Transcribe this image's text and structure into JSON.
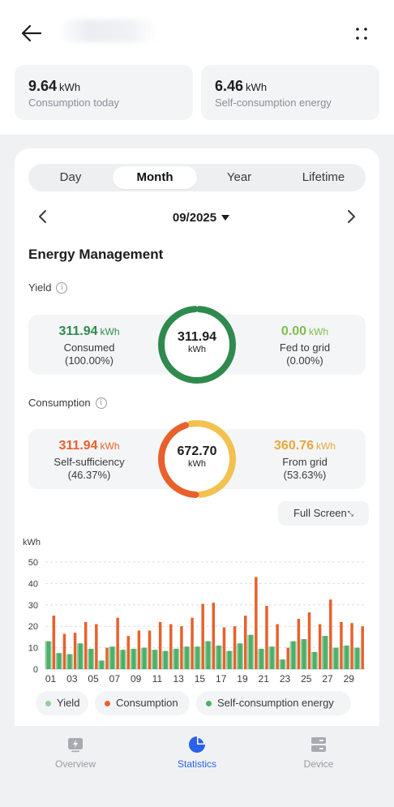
{
  "header": {
    "stats": [
      {
        "value": "9.64",
        "unit": "kWh",
        "label": "Consumption today"
      },
      {
        "value": "6.46",
        "unit": "kWh",
        "label": "Self-consumption energy"
      }
    ]
  },
  "tabs": {
    "items": [
      "Day",
      "Month",
      "Year",
      "Lifetime"
    ],
    "active": "Month"
  },
  "date": {
    "label": "09/2025"
  },
  "section": {
    "title": "Energy Management"
  },
  "yield": {
    "label": "Yield",
    "info_icon": "i",
    "consumed_value": "311.94",
    "consumed_unit": "kWh",
    "consumed_label": "Consumed",
    "consumed_pct": "(100.00%)",
    "total": "311.94",
    "total_unit": "kWh",
    "fed_value": "0.00",
    "fed_unit": "kWh",
    "fed_label": "Fed to grid",
    "fed_pct": "(0.00%)",
    "consumed_fraction": 1.0,
    "ring_color": "#2f8a4e"
  },
  "consumption": {
    "label": "Consumption",
    "info_icon": "i",
    "self_value": "311.94",
    "self_unit": "kWh",
    "self_label": "Self-sufficiency",
    "self_pct": "(46.37%)",
    "total": "672.70",
    "total_unit": "kWh",
    "grid_value": "360.76",
    "grid_unit": "kWh",
    "grid_label": "From grid",
    "grid_pct": "(53.63%)",
    "self_fraction": 0.4637,
    "self_color": "#e8612c",
    "grid_color": "#f2c14e"
  },
  "fullscreen": {
    "label": "Full Screen",
    "icon_glyph": "⤡"
  },
  "chart_data": {
    "type": "bar",
    "ylabel": "kWh",
    "ylim": [
      0,
      50
    ],
    "yticks": [
      0,
      10,
      20,
      30,
      40,
      50
    ],
    "x": [
      "01",
      "02",
      "03",
      "04",
      "05",
      "06",
      "07",
      "08",
      "09",
      "10",
      "11",
      "12",
      "13",
      "14",
      "15",
      "16",
      "17",
      "18",
      "19",
      "20",
      "21",
      "22",
      "23",
      "24",
      "25",
      "26",
      "27",
      "28",
      "29",
      "30"
    ],
    "xtick_labels": [
      "01",
      "03",
      "05",
      "07",
      "09",
      "11",
      "13",
      "15",
      "17",
      "19",
      "21",
      "23",
      "25",
      "27",
      "29"
    ],
    "grid": true,
    "series": [
      {
        "name": "Yield",
        "color": "#8fcf9c",
        "values": [
          13,
          7.5,
          7,
          12,
          9.5,
          4,
          10.5,
          9,
          9.5,
          10,
          9,
          8.5,
          9.5,
          10.5,
          10.5,
          13,
          11,
          8.5,
          12,
          16,
          9.5,
          10.5,
          4.5,
          13,
          14,
          8,
          15.5,
          10,
          11,
          10
        ]
      },
      {
        "name": "Consumption",
        "color": "#e8612c",
        "values": [
          25,
          16.5,
          17,
          22,
          21,
          10,
          24,
          15.5,
          18,
          18,
          22,
          21,
          20,
          24,
          30.5,
          31,
          19.5,
          20,
          25,
          43,
          29.5,
          21,
          10,
          23.5,
          26.5,
          21,
          32.5,
          22,
          21.5,
          20
        ]
      },
      {
        "name": "Self-consumption energy",
        "color": "#4caf6a",
        "values": [
          13,
          7.5,
          7,
          12,
          9.5,
          4,
          10.5,
          9,
          9.5,
          10,
          9,
          8.5,
          9.5,
          10.5,
          10.5,
          13,
          11,
          8.5,
          12,
          16,
          9.5,
          10.5,
          4.5,
          13,
          14,
          8,
          15.5,
          10,
          11,
          10
        ]
      }
    ]
  },
  "legend": {
    "items": [
      {
        "label": "Yield",
        "color": "#8fcf9c"
      },
      {
        "label": "Consumption",
        "color": "#e8612c"
      },
      {
        "label": "Self-consumption energy",
        "color": "#4caf6a"
      }
    ]
  },
  "bottom_nav": {
    "items": [
      {
        "label": "Overview",
        "icon": "overview-icon"
      },
      {
        "label": "Statistics",
        "icon": "statistics-icon"
      },
      {
        "label": "Device",
        "icon": "device-icon"
      }
    ],
    "active": "Statistics",
    "active_color": "#2b61e8",
    "inactive_color": "#9a9ca1"
  }
}
